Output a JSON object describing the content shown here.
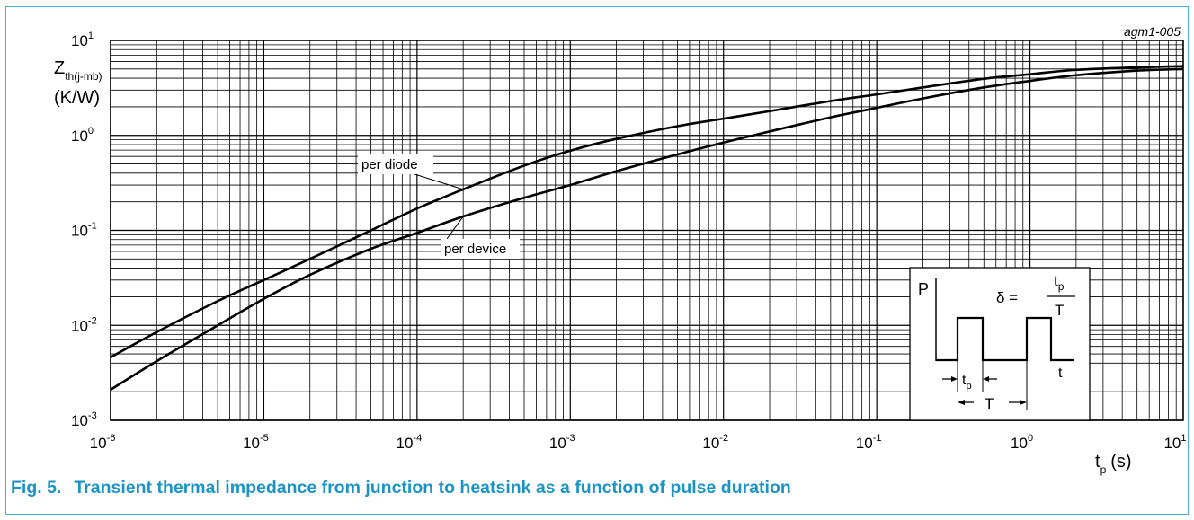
{
  "chart_data": {
    "type": "line",
    "xscale": "log",
    "yscale": "log",
    "xlim": [
      1e-06,
      10
    ],
    "ylim": [
      0.001,
      10
    ],
    "grid": true,
    "code": "agm1-005",
    "ylabel": {
      "main": "Z",
      "sub": "th(j-mb)",
      "unit": "(K/W)"
    },
    "xlabel": {
      "main": "t",
      "sub": "p",
      "unit": "(s)"
    },
    "x_ticks": [
      {
        "base": "10",
        "exp": "-6",
        "value": 1e-06
      },
      {
        "base": "10",
        "exp": "-5",
        "value": 1e-05
      },
      {
        "base": "10",
        "exp": "-4",
        "value": 0.0001
      },
      {
        "base": "10",
        "exp": "-3",
        "value": 0.001
      },
      {
        "base": "10",
        "exp": "-2",
        "value": 0.01
      },
      {
        "base": "10",
        "exp": "-1",
        "value": 0.1
      },
      {
        "base": "10",
        "exp": "0",
        "value": 1
      },
      {
        "base": "10",
        "exp": "1",
        "value": 10
      }
    ],
    "y_ticks": [
      {
        "base": "10",
        "exp": "-3",
        "value": 0.001
      },
      {
        "base": "10",
        "exp": "-2",
        "value": 0.01
      },
      {
        "base": "10",
        "exp": "-1",
        "value": 0.1
      },
      {
        "base": "10",
        "exp": "0",
        "value": 1
      },
      {
        "base": "10",
        "exp": "1",
        "value": 10
      }
    ],
    "series": [
      {
        "name": "per diode",
        "x": [
          1e-06,
          2e-06,
          5e-06,
          1e-05,
          2e-05,
          5e-05,
          0.0001,
          0.0002,
          0.0005,
          0.001,
          0.002,
          0.005,
          0.01,
          0.02,
          0.05,
          0.1,
          0.2,
          0.5,
          1,
          2,
          5,
          10
        ],
        "y": [
          0.0046,
          0.0085,
          0.018,
          0.03,
          0.05,
          0.1,
          0.17,
          0.27,
          0.48,
          0.69,
          0.92,
          1.25,
          1.5,
          1.8,
          2.3,
          2.7,
          3.2,
          3.95,
          4.4,
          4.9,
          5.2,
          5.35
        ]
      },
      {
        "name": "per device",
        "x": [
          1e-06,
          2e-06,
          5e-06,
          1e-05,
          2e-05,
          5e-05,
          0.0001,
          0.0002,
          0.0005,
          0.001,
          0.002,
          0.005,
          0.01,
          0.02,
          0.05,
          0.1,
          0.2,
          0.5,
          1,
          2,
          5,
          10
        ],
        "y": [
          0.0021,
          0.0042,
          0.01,
          0.019,
          0.034,
          0.064,
          0.094,
          0.14,
          0.22,
          0.3,
          0.42,
          0.63,
          0.84,
          1.1,
          1.55,
          1.95,
          2.45,
          3.2,
          3.75,
          4.3,
          4.8,
          5.0
        ]
      }
    ],
    "annotations": [
      {
        "text": "per diode",
        "series": "per diode",
        "x": 0.0002
      },
      {
        "text": "per device",
        "series": "per device",
        "x": 0.0002
      }
    ],
    "inset": {
      "p_label": "P",
      "t_label": "t",
      "delta_symbol": "δ =",
      "numerator": {
        "main": "t",
        "sub": "p"
      },
      "denominator": "T",
      "tp_label": {
        "main": "t",
        "sub": "p"
      },
      "period_label": "T"
    }
  },
  "caption": {
    "fig": "Fig. 5.",
    "text": "Transient thermal impedance from junction to heatsink as a function of pulse duration",
    "color": "#1b94c4"
  }
}
